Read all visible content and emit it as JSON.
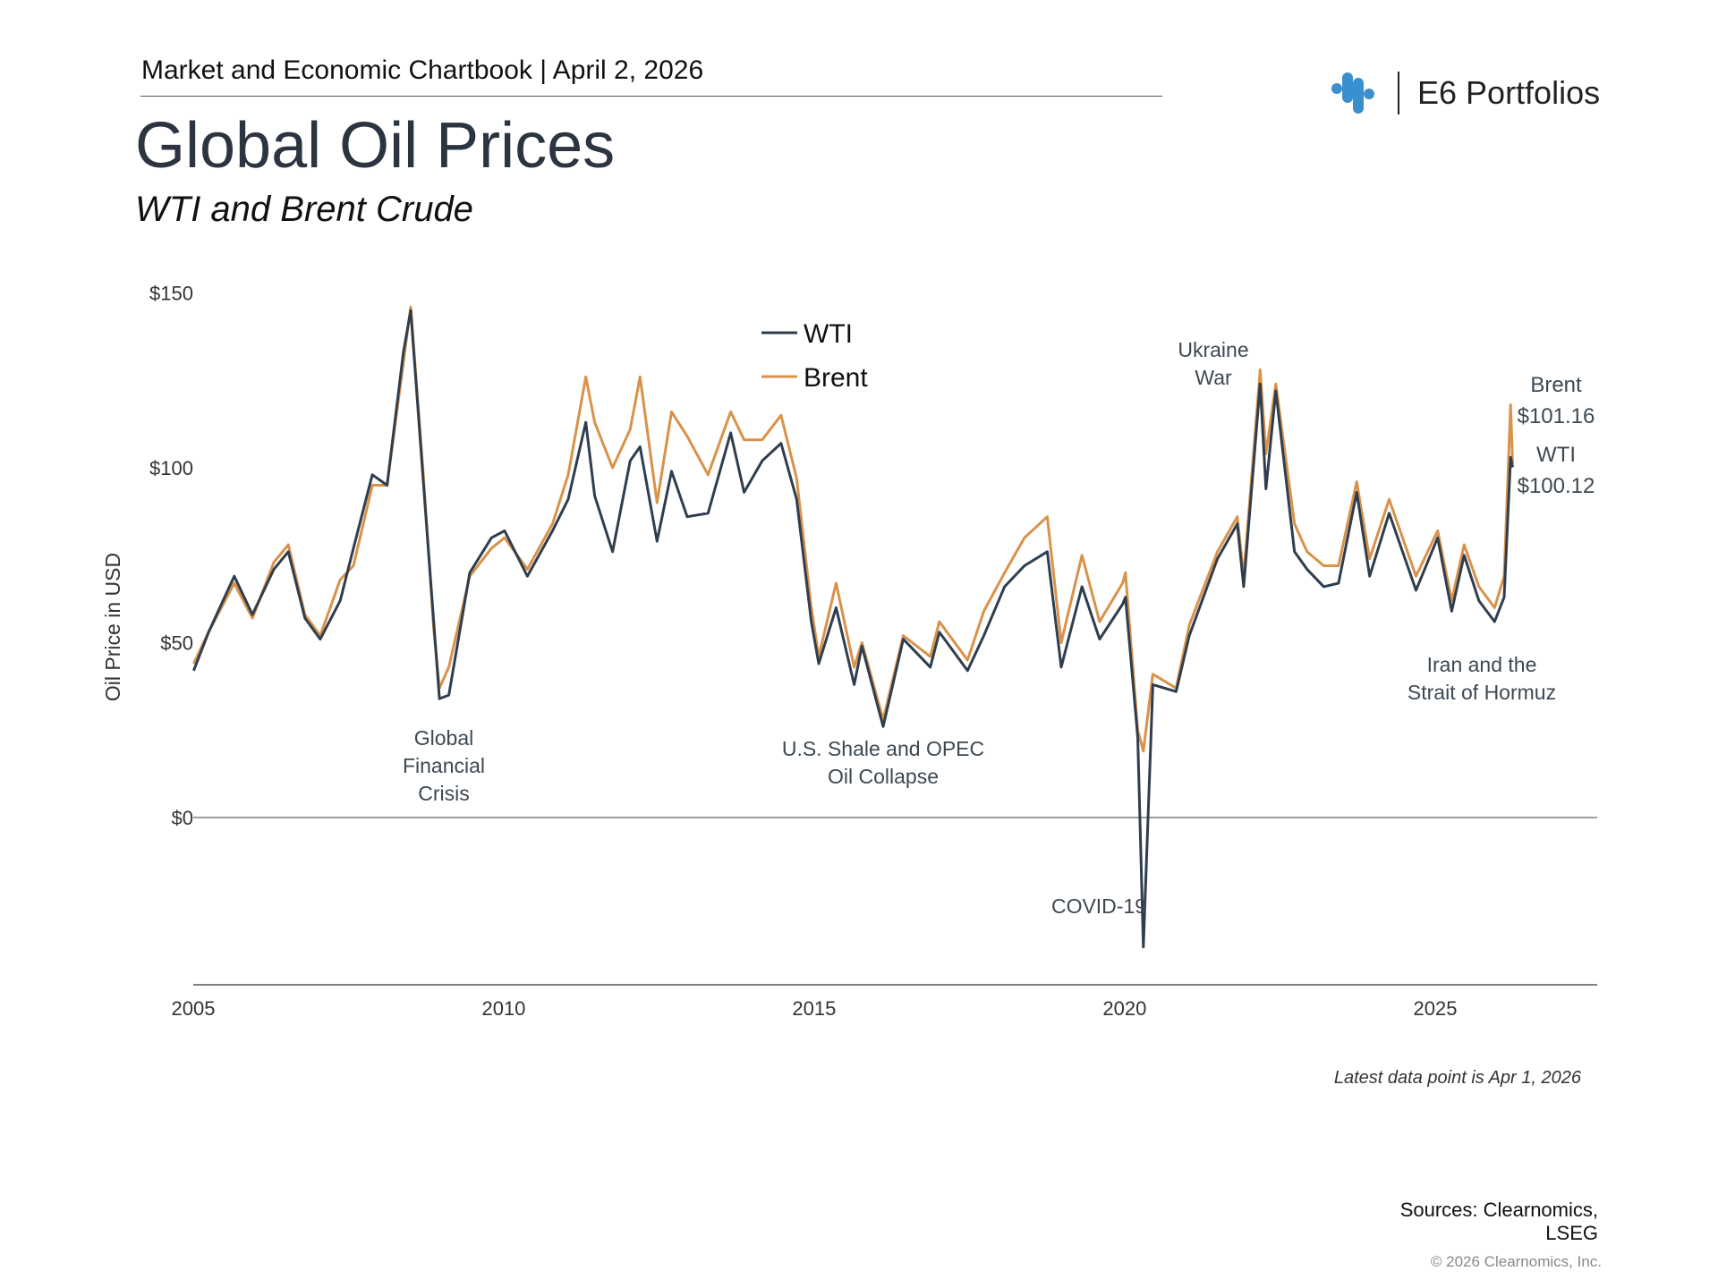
{
  "header": {
    "chartbook": "Market and Economic Chartbook | April 2, 2026",
    "title": "Global Oil Prices",
    "subtitle": "WTI and Brent Crude"
  },
  "logo": {
    "name": "E6 Portfolios",
    "icon": "e6-dots-logo-icon",
    "color": "#3a8fcf"
  },
  "chart_data": {
    "type": "line",
    "title": "Global Oil Prices",
    "subtitle": "WTI and Brent Crude",
    "ylabel": "Oil Price in USD",
    "xlabel": "",
    "ylim": [
      -40,
      150
    ],
    "xlim": [
      "2005-01-01",
      "2027-09-01"
    ],
    "y_ticks": [
      "$150",
      "$100",
      "$50",
      "$0"
    ],
    "y_tick_values": [
      150,
      100,
      50,
      0
    ],
    "x_ticks": [
      "2005",
      "2010",
      "2015",
      "2020",
      "2025"
    ],
    "grid": false,
    "legend": {
      "placement": "top-center",
      "entries": [
        "WTI",
        "Brent"
      ]
    },
    "colors": {
      "WTI": "#2f3e4e",
      "Brent": "#d9924a"
    },
    "x": [
      "2005-01-03",
      "2005-04-01",
      "2005-08-30",
      "2005-12-15",
      "2006-04-20",
      "2006-07-14",
      "2006-10-20",
      "2007-01-18",
      "2007-05-15",
      "2007-08-01",
      "2007-11-20",
      "2008-02-15",
      "2008-05-21",
      "2008-07-03",
      "2008-09-15",
      "2008-11-15",
      "2008-12-19",
      "2009-02-12",
      "2009-06-15",
      "2009-10-21",
      "2010-01-06",
      "2010-05-20",
      "2010-10-15",
      "2011-01-15",
      "2011-04-29",
      "2011-06-20",
      "2011-10-03",
      "2012-01-15",
      "2012-03-13",
      "2012-06-21",
      "2012-09-14",
      "2012-12-15",
      "2013-04-17",
      "2013-08-28",
      "2013-11-15",
      "2014-03-01",
      "2014-06-20",
      "2014-09-20",
      "2014-12-15",
      "2015-01-28",
      "2015-05-10",
      "2015-08-24",
      "2015-10-09",
      "2016-02-11",
      "2016-06-08",
      "2016-11-14",
      "2017-01-06",
      "2017-06-21",
      "2017-09-25",
      "2018-01-25",
      "2018-05-22",
      "2018-10-03",
      "2018-12-24",
      "2019-04-25",
      "2019-08-07",
      "2019-12-20",
      "2020-01-06",
      "2020-03-18",
      "2020-04-20",
      "2020-06-15",
      "2020-10-30",
      "2021-01-15",
      "2021-06-30",
      "2021-10-25",
      "2021-12-01",
      "2022-03-08",
      "2022-04-11",
      "2022-06-08",
      "2022-09-26",
      "2022-12-09",
      "2023-03-17",
      "2023-06-12",
      "2023-09-27",
      "2023-12-12",
      "2024-04-05",
      "2024-09-10",
      "2025-01-15",
      "2025-04-08",
      "2025-06-20",
      "2025-09-15",
      "2025-12-16",
      "2026-02-10",
      "2026-03-20",
      "2026-04-01"
    ],
    "series": [
      {
        "name": "WTI",
        "values": [
          42,
          53,
          69,
          58,
          71,
          76,
          57,
          51,
          62,
          77,
          98,
          95,
          133,
          145,
          96,
          56,
          34,
          35,
          70,
          80,
          82,
          69,
          82,
          91,
          113,
          92,
          76,
          102,
          106,
          79,
          99,
          86,
          87,
          110,
          93,
          102,
          107,
          91,
          56,
          44,
          60,
          38,
          49,
          26,
          51,
          43,
          53,
          42,
          52,
          66,
          72,
          76,
          43,
          66,
          51,
          61,
          63,
          23,
          -37,
          38,
          36,
          52,
          74,
          84,
          66,
          124,
          94,
          122,
          76,
          71,
          66,
          67,
          93,
          69,
          87,
          65,
          80,
          59,
          75,
          62,
          56,
          63,
          103,
          100.12
        ]
      },
      {
        "name": "Brent",
        "values": [
          44,
          53,
          67,
          57,
          73,
          78,
          58,
          52,
          68,
          72,
          95,
          95,
          130,
          146,
          98,
          54,
          37,
          43,
          69,
          77,
          80,
          71,
          84,
          98,
          126,
          113,
          100,
          111,
          126,
          90,
          116,
          109,
          98,
          116,
          108,
          108,
          115,
          97,
          60,
          46,
          67,
          43,
          50,
          28,
          52,
          46,
          56,
          45,
          59,
          70,
          80,
          86,
          50,
          75,
          56,
          67,
          70,
          25,
          19,
          41,
          37,
          55,
          76,
          86,
          69,
          128,
          104,
          124,
          84,
          76,
          72,
          72,
          96,
          74,
          91,
          69,
          82,
          62,
          78,
          66,
          60,
          69,
          118,
          101.16
        ]
      }
    ],
    "end_labels": {
      "brent_name": "Brent",
      "brent_value": "$101.16",
      "wti_name": "WTI",
      "wti_value": "$100.12"
    },
    "annotations": {
      "gfc": [
        "Global",
        "Financial",
        "Crisis"
      ],
      "shale": [
        "U.S. Shale and OPEC",
        "Oil Collapse"
      ],
      "covid": [
        "COVID-19"
      ],
      "ukraine": [
        "Ukraine",
        "War"
      ],
      "iran": [
        "Iran and the",
        "Strait of Hormuz"
      ]
    }
  },
  "footer": {
    "footnote": "Latest data point is Apr 1, 2026",
    "sources_line1": "Sources: Clearnomics,",
    "sources_line2": "LSEG",
    "copyright": "© 2026 Clearnomics, Inc."
  }
}
